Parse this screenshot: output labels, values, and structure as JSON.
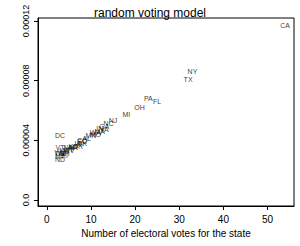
{
  "chart_data": {
    "type": "scatter",
    "title": "random voting model",
    "x_label": "Number of electoral votes for the state",
    "marker": "text",
    "color": "#000000",
    "grid": false,
    "labels": [
      "CA",
      "NY",
      "TX",
      "FL",
      "PA",
      "OH",
      "MI",
      "NJ",
      "NC",
      "GA",
      "VA",
      "IN",
      "MA",
      "WA",
      "MO",
      "MN",
      "DC",
      "AL",
      "CO",
      "SC",
      "OK",
      "IA",
      "OR",
      "KS",
      "AR",
      "UT",
      "NM",
      "WV",
      "ME",
      "NH",
      "RI",
      "VT",
      "WY",
      "DE",
      "MT",
      "ND"
    ],
    "x": [
      54,
      33,
      32,
      25,
      23,
      21,
      18,
      15,
      14,
      13,
      13,
      12,
      12,
      11,
      11,
      10,
      3,
      9,
      8,
      8,
      8,
      7,
      7,
      6,
      6,
      5,
      5,
      5,
      4,
      4,
      4,
      3,
      3,
      3,
      3,
      3
    ],
    "values": [
      0.000117,
      8.6e-05,
      8.1e-05,
      6.6e-05,
      6.8e-05,
      6.2e-05,
      5.7e-05,
      5.3e-05,
      5.1e-05,
      4.9e-05,
      4.7e-05,
      4.8e-05,
      4.6e-05,
      4.5e-05,
      4.4e-05,
      4.3e-05,
      4.3e-05,
      4.1e-05,
      4e-05,
      3.9e-05,
      3.8e-05,
      3.8e-05,
      3.6e-05,
      3.6e-05,
      3.5e-05,
      3.4e-05,
      3.5e-05,
      3.3e-05,
      3.3e-05,
      3.1e-05,
      3e-05,
      3.5e-05,
      3.2e-05,
      3.1e-05,
      2.9e-05,
      2.7e-05
    ],
    "xlim": [
      -2,
      56
    ],
    "xticks": [
      0,
      10,
      20,
      30,
      40,
      50
    ],
    "ylim": [
      -4e-06,
      0.000122
    ],
    "yticks": [
      {
        "value": 0,
        "label": "0.0"
      },
      4e-05,
      8e-05,
      0.00012
    ]
  }
}
